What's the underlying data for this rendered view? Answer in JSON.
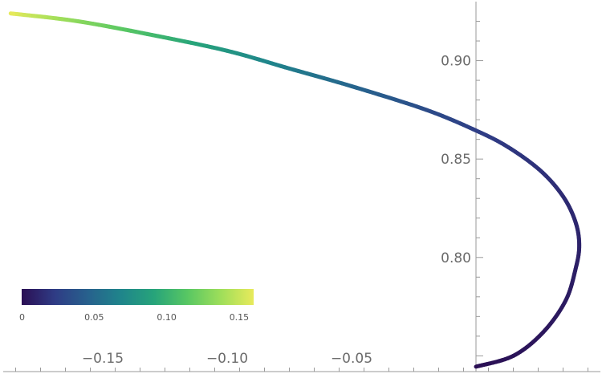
{
  "chart_data": {
    "type": "line",
    "title": "",
    "xlabel": "",
    "ylabel": "",
    "xlim": [
      -0.19,
      0.05
    ],
    "ylim": [
      0.742,
      0.93
    ],
    "x_ticks": [
      {
        "value": -0.15,
        "label": "−0.15"
      },
      {
        "value": -0.1,
        "label": "−0.10"
      },
      {
        "value": -0.05,
        "label": "−0.05"
      }
    ],
    "y_ticks": [
      {
        "value": 0.8,
        "label": "0.80"
      },
      {
        "value": 0.85,
        "label": "0.85"
      },
      {
        "value": 0.9,
        "label": "0.90"
      }
    ],
    "series": [
      {
        "color_by": "parameter",
        "points": [
          {
            "x": 0.0,
            "y": 0.7445,
            "c": 0.0
          },
          {
            "x": 0.015,
            "y": 0.75,
            "c": 0.002
          },
          {
            "x": 0.027,
            "y": 0.762,
            "c": 0.004
          },
          {
            "x": 0.036,
            "y": 0.778,
            "c": 0.006
          },
          {
            "x": 0.04,
            "y": 0.794,
            "c": 0.008
          },
          {
            "x": 0.0415,
            "y": 0.806,
            "c": 0.01
          },
          {
            "x": 0.04,
            "y": 0.818,
            "c": 0.012
          },
          {
            "x": 0.035,
            "y": 0.831,
            "c": 0.014
          },
          {
            "x": 0.026,
            "y": 0.844,
            "c": 0.017
          },
          {
            "x": 0.013,
            "y": 0.856,
            "c": 0.02
          },
          {
            "x": 0.0,
            "y": 0.8645,
            "c": 0.024
          },
          {
            "x": -0.02,
            "y": 0.875,
            "c": 0.032
          },
          {
            "x": -0.05,
            "y": 0.887,
            "c": 0.048
          },
          {
            "x": -0.075,
            "y": 0.896,
            "c": 0.062
          },
          {
            "x": -0.1,
            "y": 0.905,
            "c": 0.08
          },
          {
            "x": -0.13,
            "y": 0.913,
            "c": 0.104
          },
          {
            "x": -0.16,
            "y": 0.92,
            "c": 0.13
          },
          {
            "x": -0.187,
            "y": 0.924,
            "c": 0.16
          }
        ]
      }
    ],
    "colorbar": {
      "range": [
        0,
        0.16
      ],
      "palette": [
        "#2b0f54",
        "#2f3c85",
        "#27618d",
        "#1f858b",
        "#27a47a",
        "#58c763",
        "#9ede5a",
        "#e8ea5b"
      ],
      "ticks": [
        {
          "value": 0,
          "label": "0"
        },
        {
          "value": 0.05,
          "label": "0.05"
        },
        {
          "value": 0.1,
          "label": "0.10"
        },
        {
          "value": 0.15,
          "label": "0.15"
        }
      ],
      "placement": "bottom-left"
    },
    "grid": false,
    "axis_color": "#9a9a9a"
  }
}
